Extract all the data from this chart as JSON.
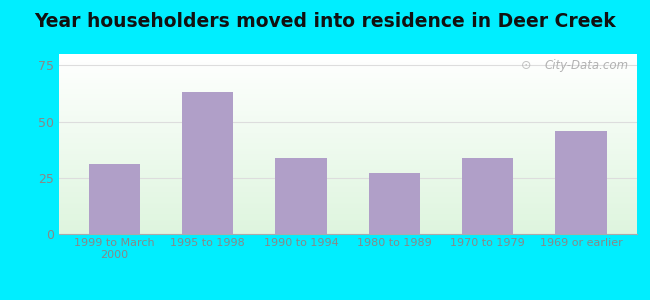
{
  "categories": [
    "1999 to March\n2000",
    "1995 to 1998",
    "1990 to 1994",
    "1980 to 1989",
    "1970 to 1979",
    "1969 or earlier"
  ],
  "values": [
    31,
    63,
    34,
    27,
    34,
    46
  ],
  "bar_color": "#b09fc8",
  "title": "Year householders moved into residence in Deer Creek",
  "title_fontsize": 13.5,
  "title_fontweight": "bold",
  "ylim": [
    0,
    80
  ],
  "yticks": [
    0,
    25,
    50,
    75
  ],
  "background_outer": "#00eeff",
  "grid_color": "#dddddd",
  "watermark": "City-Data.com",
  "bar_width": 0.55,
  "tick_color": "#888888",
  "title_color": "#111111"
}
